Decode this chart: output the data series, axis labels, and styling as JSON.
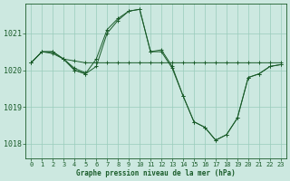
{
  "background_color": "#cce8e0",
  "grid_color": "#99ccbb",
  "line_color": "#1a5c2a",
  "yticks": [
    1018,
    1019,
    1020,
    1021
  ],
  "xticks": [
    0,
    1,
    2,
    3,
    4,
    5,
    6,
    7,
    8,
    9,
    10,
    11,
    12,
    13,
    14,
    15,
    16,
    17,
    18,
    19,
    20,
    21,
    22,
    23
  ],
  "ylim": [
    1017.6,
    1021.8
  ],
  "xlim": [
    -0.5,
    23.5
  ],
  "xlabel": "Graphe pression niveau de la mer (hPa)",
  "series": [
    {
      "x": [
        0,
        1,
        2,
        3,
        4,
        5,
        6,
        7,
        8,
        9,
        10,
        11,
        12,
        13,
        14,
        15,
        16,
        17,
        18,
        19,
        20,
        21,
        22,
        23
      ],
      "y": [
        1020.2,
        1020.5,
        1020.5,
        1020.3,
        1020.25,
        1020.2,
        1020.2,
        1020.2,
        1020.2,
        1020.2,
        1020.2,
        1020.2,
        1020.2,
        1020.2,
        1020.2,
        1020.2,
        1020.2,
        1020.2,
        1020.2,
        1020.2,
        1020.2,
        1020.2,
        1020.2,
        1020.2
      ]
    },
    {
      "x": [
        0,
        1,
        2,
        3,
        4,
        5,
        6,
        7,
        8,
        9,
        10,
        11,
        12,
        13,
        14,
        15,
        16,
        17,
        18,
        19,
        20,
        21,
        22,
        23
      ],
      "y": [
        1020.2,
        1020.5,
        1020.5,
        1020.3,
        1020.0,
        1019.9,
        1020.3,
        1021.1,
        1021.4,
        1021.6,
        1021.65,
        1020.5,
        1020.55,
        1020.1,
        1019.3,
        1018.6,
        1018.45,
        1018.1,
        1018.25,
        1018.7,
        1019.8,
        1019.9,
        1020.1,
        1020.15
      ]
    },
    {
      "x": [
        3,
        4,
        5,
        6,
        7,
        8,
        9,
        10,
        11,
        12,
        13,
        14,
        15,
        16,
        17,
        18,
        19,
        20,
        21,
        22,
        23
      ],
      "y": [
        1020.3,
        1020.0,
        1019.9,
        1020.1,
        1021.0,
        1021.35,
        1021.6,
        1021.65,
        1020.5,
        1020.5,
        1020.05,
        1019.3,
        1018.6,
        1018.45,
        1018.1,
        1018.25,
        1018.7,
        1019.8,
        1019.9,
        1020.1,
        1020.15
      ]
    },
    {
      "x": [
        0,
        1,
        2,
        3,
        4,
        5
      ],
      "y": [
        1020.2,
        1020.5,
        1020.45,
        1020.3,
        1020.05,
        1019.93
      ]
    }
  ]
}
